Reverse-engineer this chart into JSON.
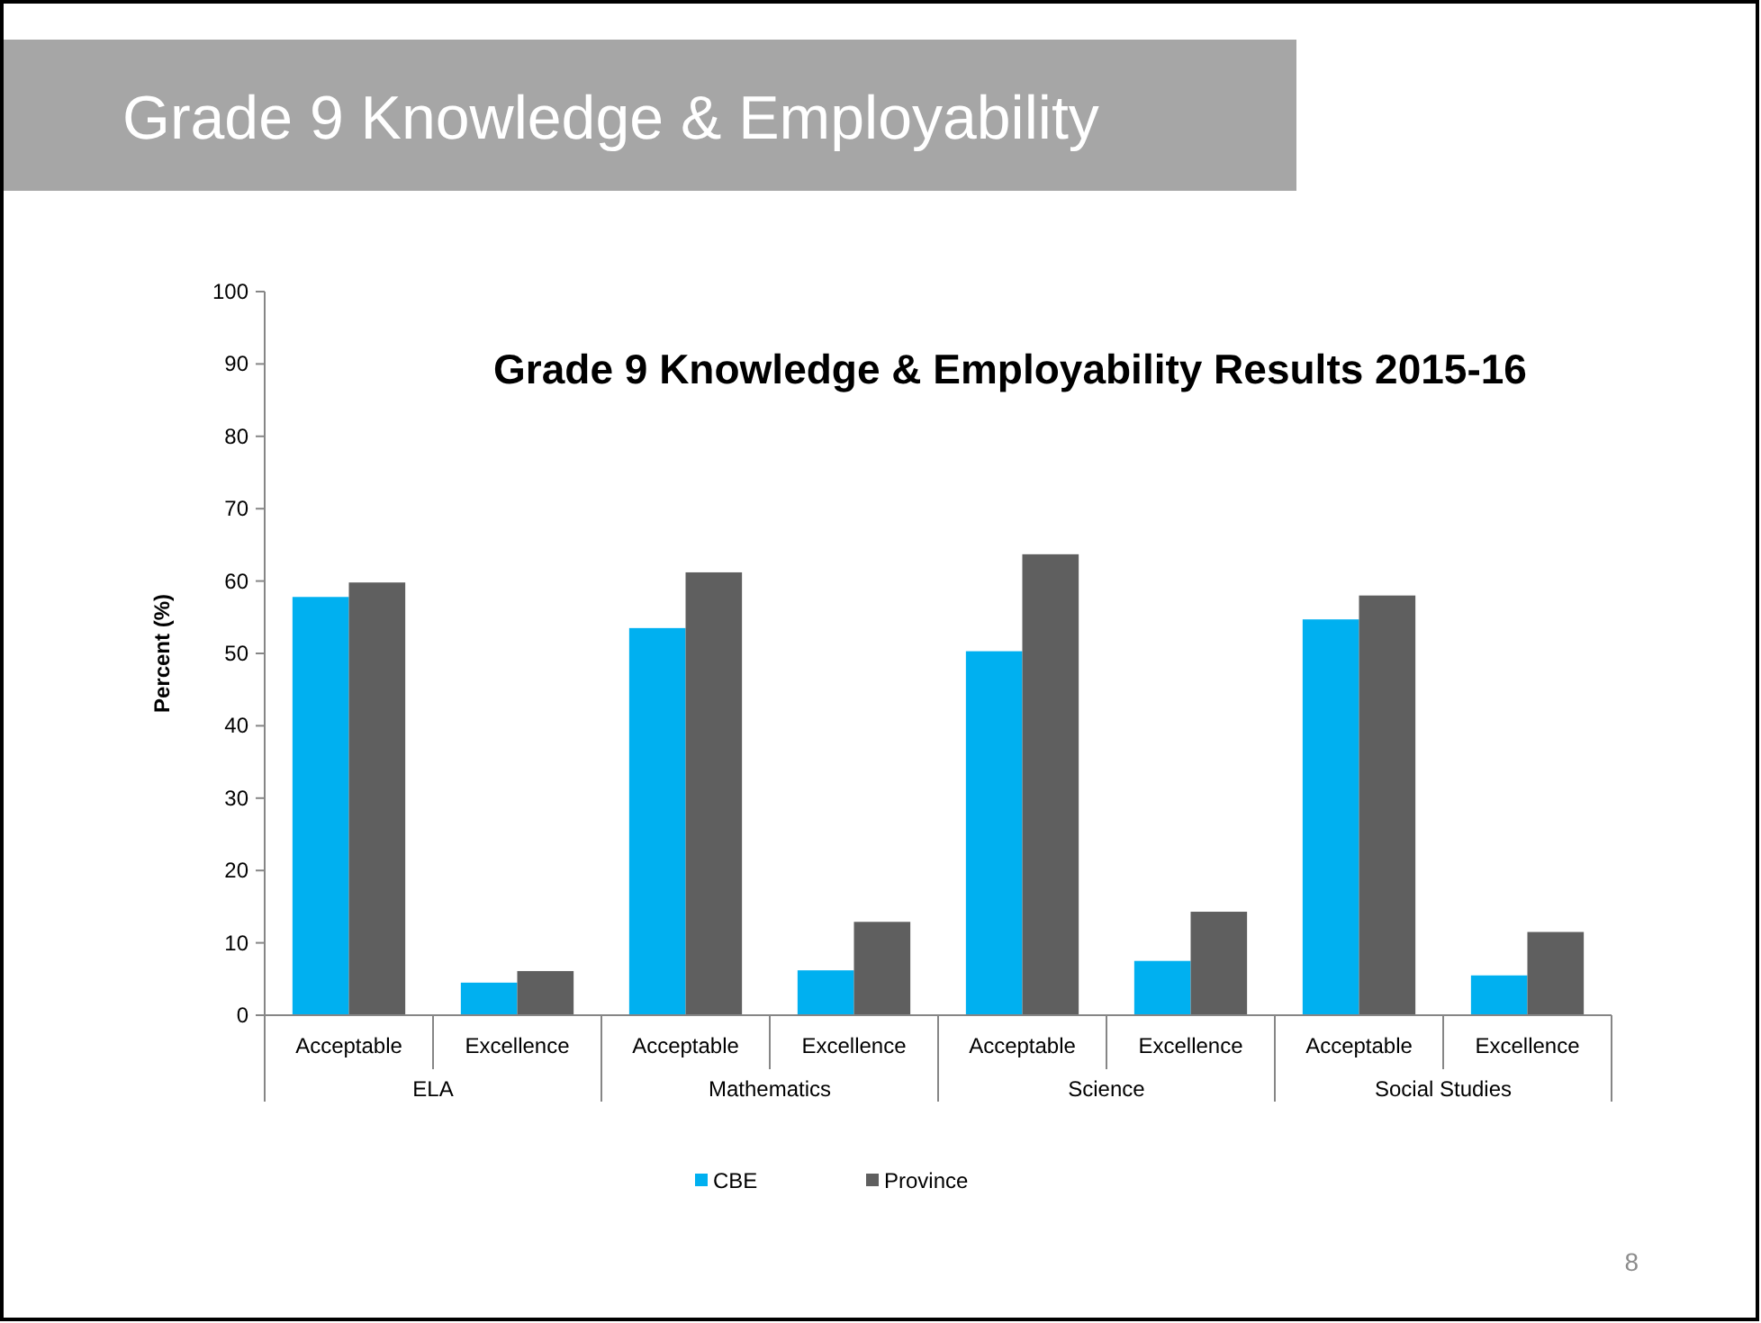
{
  "chart_data": {
    "type": "bar",
    "title": "Grade 9 Knowledge & Employability Results 2015-16",
    "subtitle": "Grade 9 Knowledge & Employability",
    "ylabel": "Percent (%)",
    "categories": [
      "Acceptable",
      "Excellence",
      "Acceptable",
      "Excellence",
      "Acceptable",
      "Excellence",
      "Acceptable",
      "Excellence"
    ],
    "series": [
      {
        "name": "CBE",
        "color": "#00b0f0",
        "values": [
          57.8,
          4.5,
          53.5,
          6.2,
          50.3,
          7.5,
          54.7,
          5.5
        ]
      },
      {
        "name": "Province",
        "color": "#5f5f5f",
        "values": [
          59.8,
          6.1,
          61.2,
          12.9,
          63.7,
          14.3,
          58,
          11.5
        ]
      }
    ],
    "ylim": [
      0,
      100
    ],
    "yticks": [
      0,
      10,
      20,
      30,
      40,
      50,
      60,
      70,
      80,
      90,
      100
    ],
    "grid": false,
    "legend": "bottom",
    "annotations": [
      "ELA",
      "Mathematics",
      "Science",
      "Social Studies",
      "8"
    ]
  }
}
